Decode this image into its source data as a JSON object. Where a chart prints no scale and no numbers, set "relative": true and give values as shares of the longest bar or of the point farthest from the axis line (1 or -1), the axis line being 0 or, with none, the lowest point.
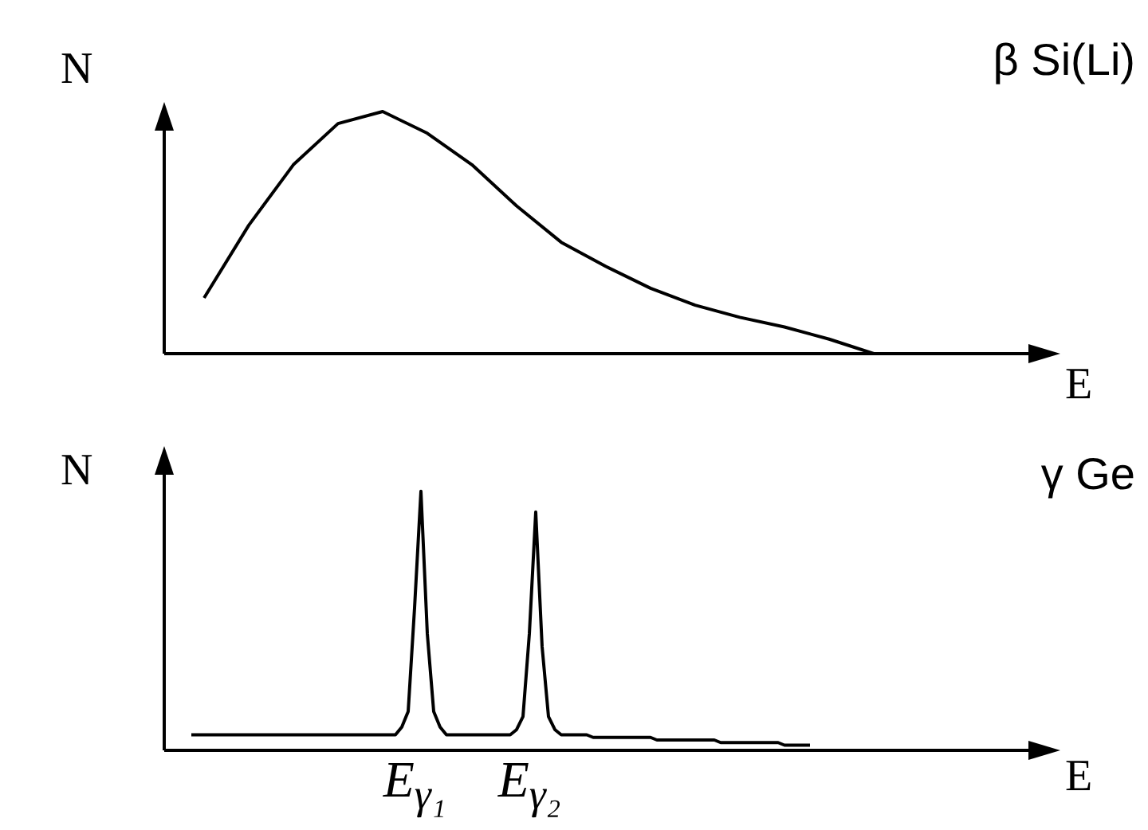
{
  "chart_data": [
    {
      "type": "line",
      "annotations": [
        "β Si(Li)"
      ],
      "xlabel": "E",
      "ylabel": "N",
      "relative": true,
      "color": "#000000",
      "categories": [
        null,
        null,
        null,
        null,
        null,
        null,
        null,
        null,
        null,
        null,
        null,
        null,
        null,
        null,
        null,
        null
      ],
      "values": [
        0.23,
        0.53,
        0.78,
        0.95,
        1.0,
        0.91,
        0.78,
        0.61,
        0.46,
        0.36,
        0.27,
        0.2,
        0.15,
        0.11,
        0.06,
        0.0
      ]
    },
    {
      "type": "line",
      "xlabel": "E",
      "ylabel": "N",
      "relative": true,
      "color": "#000000",
      "annotations": [
        "γ Ge",
        "E$_{γ₁}$",
        "E$_{γ₂}$"
      ],
      "categories": [
        null,
        null,
        null,
        null,
        null,
        null,
        null,
        null,
        null,
        null,
        null,
        null,
        null,
        null,
        null,
        null,
        null,
        null,
        null,
        null,
        null,
        null,
        null,
        null,
        null,
        null,
        null,
        null,
        null,
        null,
        null,
        null,
        null,
        null,
        null,
        null,
        null,
        null,
        null,
        null,
        null,
        null,
        null,
        null,
        null,
        null,
        null,
        null,
        null,
        null,
        null,
        null,
        null,
        null,
        null,
        null,
        null,
        null,
        null,
        null,
        null,
        null,
        null,
        null,
        null,
        null,
        null,
        null,
        null,
        null,
        null,
        null,
        null,
        null,
        null,
        null,
        null,
        null,
        null,
        null,
        null,
        null,
        null,
        null,
        null,
        null,
        null,
        null,
        null,
        null,
        null,
        null,
        null,
        null,
        null,
        null,
        null,
        null
      ],
      "values": [
        0.06,
        0.06,
        0.06,
        0.06,
        0.06,
        0.06,
        0.06,
        0.06,
        0.06,
        0.06,
        0.06,
        0.06,
        0.06,
        0.06,
        0.06,
        0.06,
        0.06,
        0.06,
        0.06,
        0.06,
        0.06,
        0.06,
        0.06,
        0.06,
        0.06,
        0.06,
        0.06,
        0.06,
        0.06,
        0.06,
        0.06,
        0.06,
        0.06,
        0.09,
        0.15,
        0.55,
        1.0,
        0.45,
        0.15,
        0.09,
        0.06,
        0.06,
        0.06,
        0.06,
        0.06,
        0.06,
        0.06,
        0.06,
        0.06,
        0.06,
        0.06,
        0.08,
        0.13,
        0.45,
        0.92,
        0.4,
        0.13,
        0.08,
        0.06,
        0.06,
        0.06,
        0.06,
        0.06,
        0.05,
        0.05,
        0.05,
        0.05,
        0.05,
        0.05,
        0.05,
        0.05,
        0.05,
        0.05,
        0.04,
        0.04,
        0.04,
        0.04,
        0.04,
        0.04,
        0.04,
        0.04,
        0.04,
        0.04,
        0.03,
        0.03,
        0.03,
        0.03,
        0.03,
        0.03,
        0.03,
        0.03,
        0.03,
        0.03,
        0.02,
        0.02,
        0.02,
        0.02,
        0.02
      ]
    }
  ]
}
